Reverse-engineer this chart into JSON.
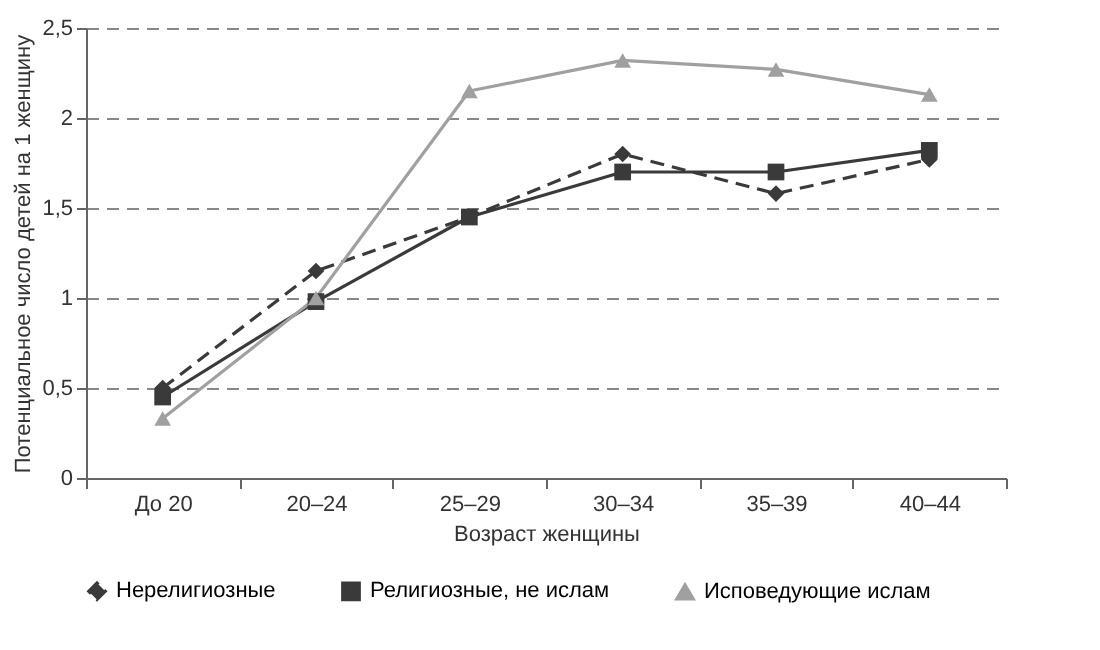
{
  "chart_data": {
    "type": "line",
    "xlabel": "Возраст женщины",
    "ylabel": "Потенциальное число детей на 1 женщину",
    "categories": [
      "До 20",
      "20–24",
      "25–29",
      "30–34",
      "35–39",
      "40–44"
    ],
    "series": [
      {
        "name": "Нерелигиозные",
        "color": "#3a3a3a",
        "marker": "diamond",
        "line_style": "dashed",
        "values": [
          0.5,
          1.15,
          1.45,
          1.8,
          1.58,
          1.77
        ]
      },
      {
        "name": "Религиозные, не ислам",
        "color": "#3a3a3a",
        "marker": "square",
        "line_style": "solid",
        "values": [
          0.45,
          0.98,
          1.45,
          1.7,
          1.7,
          1.82
        ]
      },
      {
        "name": "Исповедующие ислам",
        "color": "#a0a0a0",
        "marker": "triangle",
        "line_style": "solid",
        "values": [
          0.33,
          1.0,
          2.15,
          2.32,
          2.27,
          2.13
        ]
      }
    ],
    "ylim": [
      0,
      2.5
    ],
    "yticks": [
      0,
      {
        "value": 0.5,
        "label": "0,5"
      },
      1,
      {
        "value": 1.5,
        "label": "1,5"
      },
      2,
      {
        "value": 2.5,
        "label": "2,5"
      }
    ],
    "grid": "y",
    "legend": "bottom"
  }
}
